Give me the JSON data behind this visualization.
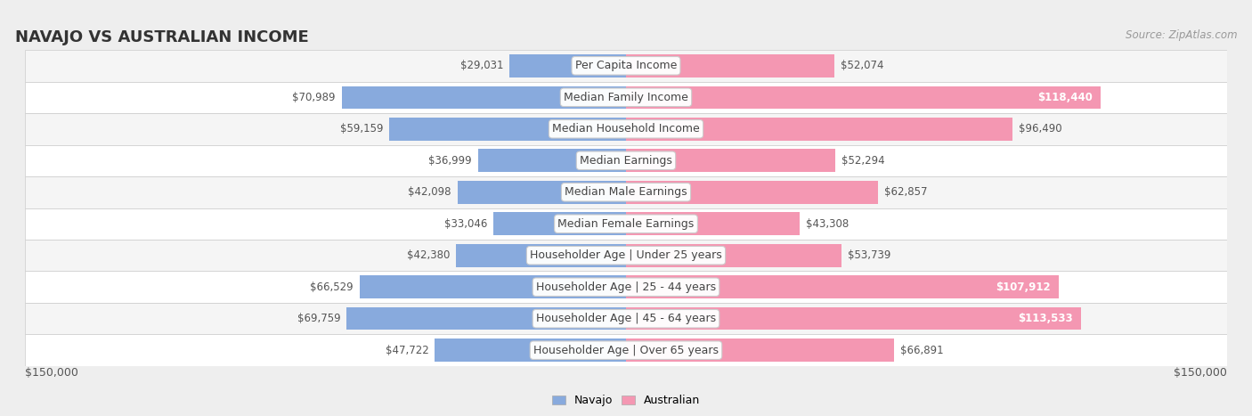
{
  "title": "NAVAJO VS AUSTRALIAN INCOME",
  "source": "Source: ZipAtlas.com",
  "categories": [
    "Per Capita Income",
    "Median Family Income",
    "Median Household Income",
    "Median Earnings",
    "Median Male Earnings",
    "Median Female Earnings",
    "Householder Age | Under 25 years",
    "Householder Age | 25 - 44 years",
    "Householder Age | 45 - 64 years",
    "Householder Age | Over 65 years"
  ],
  "navajo_values": [
    29031,
    70989,
    59159,
    36999,
    42098,
    33046,
    42380,
    66529,
    69759,
    47722
  ],
  "australian_values": [
    52074,
    118440,
    96490,
    52294,
    62857,
    43308,
    53739,
    107912,
    113533,
    66891
  ],
  "navajo_color": "#88aadd",
  "australian_color": "#f497b2",
  "navajo_label": "Navajo",
  "australian_label": "Australian",
  "max_value": 150000,
  "xlim_label_left": "$150,000",
  "xlim_label_right": "$150,000",
  "bg_color": "#eeeeee",
  "row_colors": [
    "#f5f5f5",
    "#ffffff"
  ],
  "label_font_size": 9.0,
  "title_font_size": 13,
  "value_font_size": 8.5,
  "source_font_size": 8.5
}
